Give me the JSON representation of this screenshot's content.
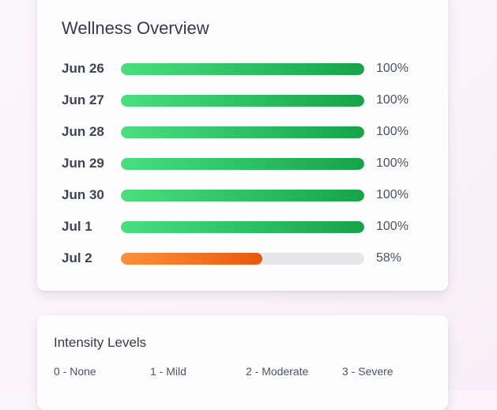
{
  "overview": {
    "title": "Wellness Overview",
    "rows": [
      {
        "date": "Jun 26",
        "percent": 100,
        "percent_label": "100%",
        "status": "complete"
      },
      {
        "date": "Jun 27",
        "percent": 100,
        "percent_label": "100%",
        "status": "complete"
      },
      {
        "date": "Jun 28",
        "percent": 100,
        "percent_label": "100%",
        "status": "complete"
      },
      {
        "date": "Jun 29",
        "percent": 100,
        "percent_label": "100%",
        "status": "complete"
      },
      {
        "date": "Jun 30",
        "percent": 100,
        "percent_label": "100%",
        "status": "complete"
      },
      {
        "date": "Jul 1",
        "percent": 100,
        "percent_label": "100%",
        "status": "complete"
      },
      {
        "date": "Jul 2",
        "percent": 58,
        "percent_label": "58%",
        "status": "partial"
      }
    ],
    "colors": {
      "complete": [
        "#4ade80",
        "#16a34a"
      ],
      "partial": [
        "#fb923c",
        "#ea580c"
      ],
      "track": "#e7e7ea"
    }
  },
  "intensity": {
    "title": "Intensity Levels",
    "levels": [
      {
        "label": "0 - None"
      },
      {
        "label": "1 - Mild"
      },
      {
        "label": "2 - Moderate"
      },
      {
        "label": "3 - Severe"
      }
    ]
  }
}
